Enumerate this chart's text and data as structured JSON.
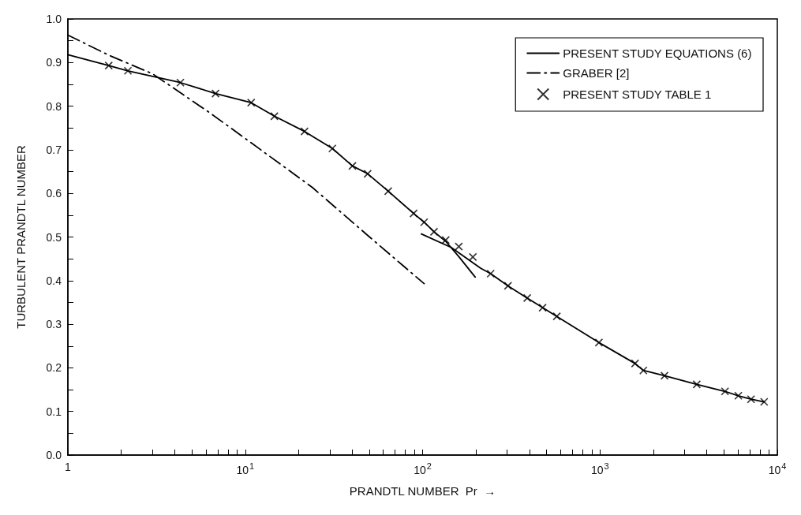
{
  "chart_data": {
    "type": "line",
    "xlabel": "PRANDTL NUMBER  Pr  →",
    "ylabel": "TURBULENT PRANDTL NUMBER",
    "log": "x",
    "xlim": [
      1,
      10000
    ],
    "xticks": [
      1,
      {
        "value": 2,
        "label": null
      },
      {
        "value": 3,
        "label": null
      },
      {
        "value": 4,
        "label": null
      },
      {
        "value": 5,
        "label": null
      },
      {
        "value": 6,
        "label": null
      },
      {
        "value": 7,
        "label": null
      },
      {
        "value": 8,
        "label": null
      },
      {
        "value": 9,
        "label": null
      },
      {
        "value": 10,
        "label": "10$^{1}$"
      },
      {
        "value": 20,
        "label": null
      },
      {
        "value": 30,
        "label": null
      },
      {
        "value": 40,
        "label": null
      },
      {
        "value": 50,
        "label": null
      },
      {
        "value": 60,
        "label": null
      },
      {
        "value": 70,
        "label": null
      },
      {
        "value": 80,
        "label": null
      },
      {
        "value": 90,
        "label": null
      },
      {
        "value": 100,
        "label": "10$^{2}$"
      },
      {
        "value": 200,
        "label": null
      },
      {
        "value": 300,
        "label": null
      },
      {
        "value": 400,
        "label": null
      },
      {
        "value": 500,
        "label": null
      },
      {
        "value": 600,
        "label": null
      },
      {
        "value": 700,
        "label": null
      },
      {
        "value": 800,
        "label": null
      },
      {
        "value": 900,
        "label": null
      },
      {
        "value": 1000,
        "label": "10$^{3}$"
      },
      {
        "value": 2000,
        "label": null
      },
      {
        "value": 3000,
        "label": null
      },
      {
        "value": 4000,
        "label": null
      },
      {
        "value": 5000,
        "label": null
      },
      {
        "value": 6000,
        "label": null
      },
      {
        "value": 7000,
        "label": null
      },
      {
        "value": 8000,
        "label": null
      },
      {
        "value": 9000,
        "label": null
      },
      {
        "value": 10000,
        "label": "10$^{4}$"
      }
    ],
    "ylim": [
      0,
      1
    ],
    "yticks": [
      {
        "value": 0,
        "label": "0.0"
      },
      {
        "value": 0.05,
        "label": null
      },
      0.1,
      {
        "value": 0.15,
        "label": null
      },
      0.2,
      {
        "value": 0.25,
        "label": null
      },
      0.3,
      {
        "value": 0.35,
        "label": null
      },
      0.4,
      {
        "value": 0.45,
        "label": null
      },
      0.5,
      {
        "value": 0.55,
        "label": null
      },
      0.6,
      {
        "value": 0.65,
        "label": null
      },
      0.7,
      {
        "value": 0.75,
        "label": null
      },
      0.8,
      {
        "value": 0.85,
        "label": null
      },
      0.9,
      {
        "value": 0.95,
        "label": null
      },
      {
        "value": 1,
        "label": "1.0"
      }
    ],
    "grid": false,
    "legend": "top right",
    "series": [
      {
        "name": "PRESENT STUDY EQUATIONS (6)",
        "line_style": "solid",
        "marker": "none",
        "color": "#000000",
        "x": [
          1,
          1.7,
          2.18,
          4.31,
          6.8,
          10.8,
          14.6,
          21.6,
          31,
          40.2,
          49,
          64,
          89,
          102,
          116,
          135,
          160,
          198
        ],
        "values": [
          0.918,
          0.893,
          0.881,
          0.854,
          0.829,
          0.808,
          0.777,
          0.742,
          0.703,
          0.663,
          0.645,
          0.605,
          0.554,
          0.534,
          0.512,
          0.49,
          0.455,
          0.408
        ]
      },
      {
        "line_style": "solid",
        "marker": "none",
        "color": "#000000",
        "x": [
          98.4,
          145,
          213,
          242,
          303,
          389,
          475,
          571,
          986,
          1577,
          1757,
          2312,
          3513,
          5070,
          6030,
          7110,
          8430
        ],
        "values": [
          0.507,
          0.476,
          0.428,
          0.416,
          0.388,
          0.36,
          0.338,
          0.318,
          0.258,
          0.21,
          0.194,
          0.182,
          0.162,
          0.146,
          0.136,
          0.128,
          0.122
        ]
      },
      {
        "name": "GRABER [2]",
        "line_style": "dashed",
        "marker": "none",
        "color": "#000000",
        "x": [
          1,
          1.7,
          3.01,
          6.3,
          10.8,
          24,
          48.6,
          102
        ],
        "values": [
          0.963,
          0.917,
          0.874,
          0.785,
          0.716,
          0.613,
          0.505,
          0.393
        ]
      },
      {
        "name": "PRESENT STUDY TABLE 1",
        "type": "scatter",
        "marker": "cross",
        "color": "#000000",
        "x": [
          1.7,
          2.18,
          4.31,
          6.8,
          10.8,
          14.6,
          21.6,
          31,
          40.2,
          49,
          64,
          89,
          102,
          116,
          135,
          160,
          192,
          242,
          303,
          389,
          475,
          571,
          986,
          1577,
          1757,
          2312,
          3513,
          5070,
          6030,
          7110,
          8430
        ],
        "values": [
          0.893,
          0.881,
          0.854,
          0.829,
          0.808,
          0.777,
          0.742,
          0.703,
          0.663,
          0.645,
          0.605,
          0.554,
          0.534,
          0.512,
          0.493,
          0.478,
          0.454,
          0.416,
          0.388,
          0.36,
          0.338,
          0.318,
          0.258,
          0.21,
          0.194,
          0.182,
          0.162,
          0.146,
          0.136,
          0.128,
          0.122
        ]
      }
    ]
  }
}
